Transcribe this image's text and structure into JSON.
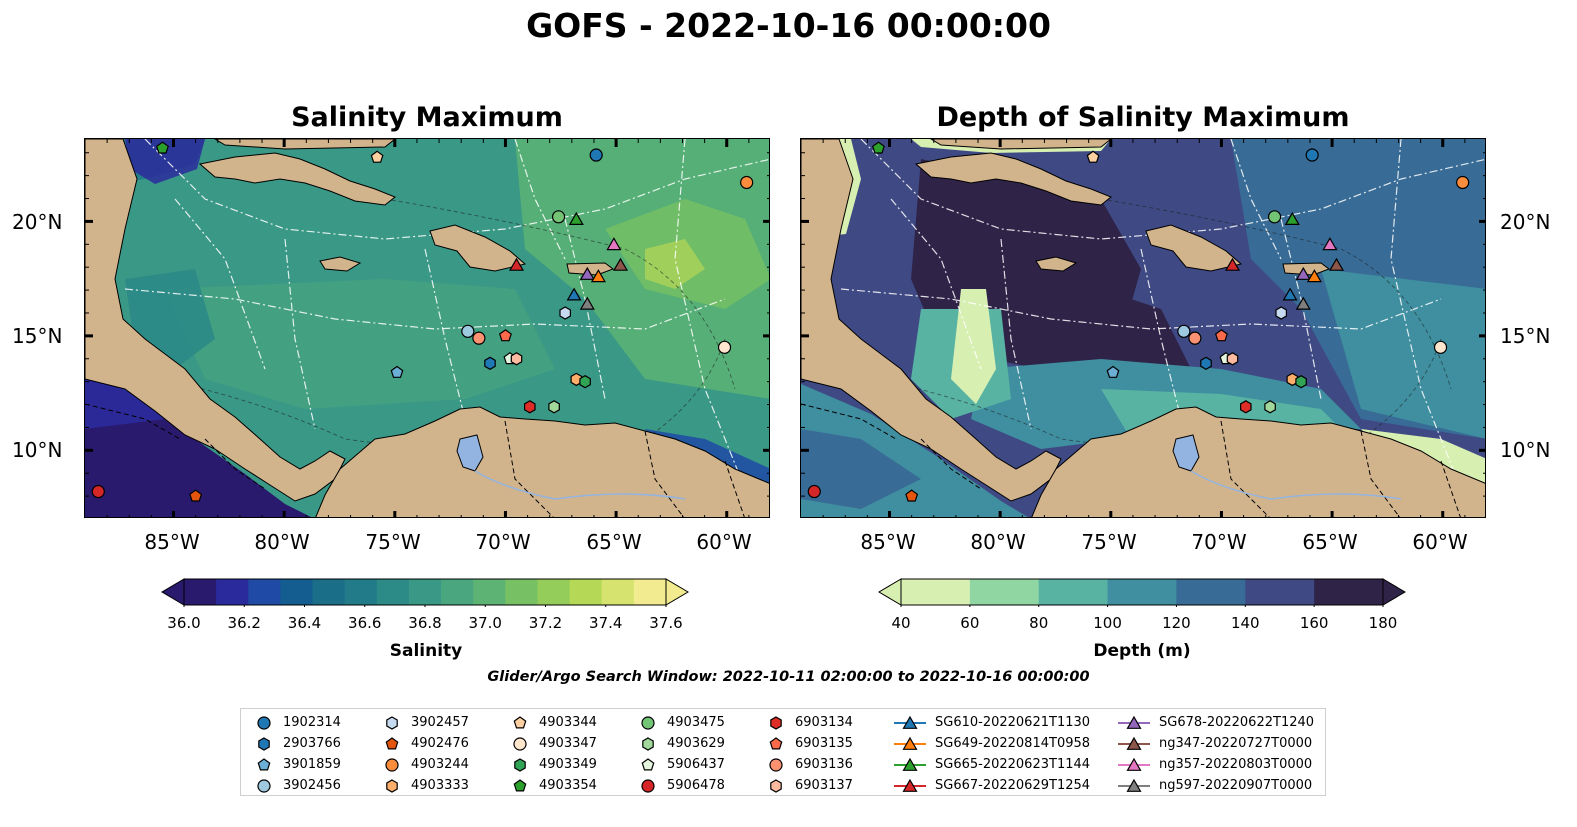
{
  "title": "GOFS - 2022-10-16 00:00:00",
  "panels": {
    "left": {
      "title": "Salinity Maximum",
      "colorbar": {
        "label": "Salinity",
        "ticks": [
          "36.0",
          "36.2",
          "36.4",
          "36.6",
          "36.8",
          "37.0",
          "37.2",
          "37.4",
          "37.6"
        ],
        "min": 36.0,
        "max": 37.6,
        "colors": [
          "#2a1a6e",
          "#2b2a9c",
          "#1f4aa5",
          "#135d91",
          "#1a6e88",
          "#227b88",
          "#2c8a87",
          "#3a9886",
          "#4aa67f",
          "#5cb373",
          "#77c164",
          "#94cd5a",
          "#b5d957",
          "#d6e36f",
          "#f2eb8f"
        ],
        "extend": "both"
      }
    },
    "right": {
      "title": "Depth of Salinity Maximum",
      "colorbar": {
        "label": "Depth (m)",
        "ticks": [
          "40",
          "60",
          "80",
          "100",
          "120",
          "140",
          "160",
          "180"
        ],
        "min": 40,
        "max": 180,
        "colors": [
          "#d8efb2",
          "#8fd6a3",
          "#58b3a3",
          "#3f8fa0",
          "#386c96",
          "#3f4a84",
          "#2f2348"
        ],
        "extend": "both"
      }
    },
    "lat_ticks": [
      "20°N",
      "15°N",
      "10°N"
    ],
    "lon_ticks": [
      "85°W",
      "80°W",
      "75°W",
      "70°W",
      "65°W",
      "60°W"
    ]
  },
  "search_window": "Glider/Argo Search Window: 2022-10-11 02:00:00 to 2022-10-16 00:00:00",
  "legend": {
    "columns": [
      [
        {
          "label": "1902314",
          "marker": "circle",
          "color": "#1f77b4"
        },
        {
          "label": "2903766",
          "marker": "hexagon",
          "color": "#1f77b4"
        },
        {
          "label": "3901859",
          "marker": "pentagon",
          "color": "#6baed6"
        },
        {
          "label": "3902456",
          "marker": "circle",
          "color": "#9ecae1"
        }
      ],
      [
        {
          "label": "3902457",
          "marker": "hexagon",
          "color": "#c6dbef"
        },
        {
          "label": "4902476",
          "marker": "pentagon",
          "color": "#e6550d"
        },
        {
          "label": "4903244",
          "marker": "circle",
          "color": "#fd8d3c"
        },
        {
          "label": "4903333",
          "marker": "hexagon",
          "color": "#fdae6b"
        }
      ],
      [
        {
          "label": "4903344",
          "marker": "pentagon",
          "color": "#fdd0a2"
        },
        {
          "label": "4903347",
          "marker": "circle",
          "color": "#fee6ce"
        },
        {
          "label": "4903349",
          "marker": "hexagon",
          "color": "#31a354"
        },
        {
          "label": "4903354",
          "marker": "pentagon",
          "color": "#2ca02c"
        }
      ],
      [
        {
          "label": "4903475",
          "marker": "circle",
          "color": "#74c476"
        },
        {
          "label": "4903629",
          "marker": "hexagon",
          "color": "#a1d99b"
        },
        {
          "label": "5906437",
          "marker": "pentagon",
          "color": "#e5f5e0"
        },
        {
          "label": "5906478",
          "marker": "circle",
          "color": "#d62728"
        }
      ],
      [
        {
          "label": "6903134",
          "marker": "hexagon",
          "color": "#de2d26"
        },
        {
          "label": "6903135",
          "marker": "pentagon",
          "color": "#fb6a4a"
        },
        {
          "label": "6903136",
          "marker": "circle",
          "color": "#fc9272"
        },
        {
          "label": "6903137",
          "marker": "hexagon",
          "color": "#fcbba1"
        }
      ],
      [
        {
          "label": "SG610-20220621T1130",
          "marker": "triangle-line",
          "color": "#1f77b4"
        },
        {
          "label": "SG649-20220814T0958",
          "marker": "triangle-line",
          "color": "#ff7f0e"
        },
        {
          "label": "SG665-20220623T1144",
          "marker": "triangle-line",
          "color": "#2ca02c"
        },
        {
          "label": "SG667-20220629T1254",
          "marker": "triangle-line",
          "color": "#d62728"
        }
      ],
      [
        {
          "label": "SG678-20220622T1240",
          "marker": "triangle-line",
          "color": "#9467bd"
        },
        {
          "label": "ng347-20220727T0000",
          "marker": "triangle-line",
          "color": "#8c564b"
        },
        {
          "label": "ng357-20220803T0000",
          "marker": "triangle-line",
          "color": "#e377c2"
        },
        {
          "label": "ng597-20220907T0000",
          "marker": "triangle-line",
          "color": "#7f7f7f"
        }
      ]
    ]
  },
  "map_markers": [
    {
      "id": "1902314",
      "marker": "circle",
      "color": "#1f77b4",
      "lon": -65.9,
      "lat": 22.9
    },
    {
      "id": "4903244",
      "marker": "circle",
      "color": "#fd8d3c",
      "lon": -59.1,
      "lat": 21.7
    },
    {
      "id": "4903354",
      "marker": "pentagon",
      "color": "#2ca02c",
      "lon": -85.5,
      "lat": 23.2
    },
    {
      "id": "4903344",
      "marker": "pentagon",
      "color": "#fdd0a2",
      "lon": -75.8,
      "lat": 22.8
    },
    {
      "id": "4903475",
      "marker": "circle",
      "color": "#74c476",
      "lon": -67.6,
      "lat": 20.2
    },
    {
      "id": "SG665-20220623T1144",
      "marker": "triangle",
      "color": "#2ca02c",
      "lon": -66.8,
      "lat": 20.1
    },
    {
      "id": "ng357-20220803T0000",
      "marker": "triangle",
      "color": "#e377c2",
      "lon": -65.1,
      "lat": 19.0
    },
    {
      "id": "SG667-20220629T1254",
      "marker": "triangle",
      "color": "#d62728",
      "lon": -69.5,
      "lat": 18.1
    },
    {
      "id": "ng347-20220727T0000",
      "marker": "triangle",
      "color": "#8c564b",
      "lon": -64.8,
      "lat": 18.1
    },
    {
      "id": "SG678-20220622T1240",
      "marker": "triangle",
      "color": "#9467bd",
      "lon": -66.3,
      "lat": 17.7
    },
    {
      "id": "SG649-20220814T0958",
      "marker": "triangle",
      "color": "#ff7f0e",
      "lon": -65.8,
      "lat": 17.6
    },
    {
      "id": "SG610-20220621T1130",
      "marker": "triangle",
      "color": "#1f77b4",
      "lon": -66.9,
      "lat": 16.8
    },
    {
      "id": "ng597-20220907T0000",
      "marker": "triangle",
      "color": "#7f7f7f",
      "lon": -66.3,
      "lat": 16.4
    },
    {
      "id": "3902457",
      "marker": "hexagon",
      "color": "#c6dbef",
      "lon": -67.3,
      "lat": 16.0
    },
    {
      "id": "3902456",
      "marker": "circle",
      "color": "#9ecae1",
      "lon": -71.7,
      "lat": 15.2
    },
    {
      "id": "6903136",
      "marker": "circle",
      "color": "#fc9272",
      "lon": -71.2,
      "lat": 14.9
    },
    {
      "id": "6903135",
      "marker": "pentagon",
      "color": "#fb6a4a",
      "lon": -70.0,
      "lat": 15.0
    },
    {
      "id": "2903766",
      "marker": "hexagon",
      "color": "#1f77b4",
      "lon": -70.7,
      "lat": 13.8
    },
    {
      "id": "5906437",
      "marker": "pentagon",
      "color": "#e5f5e0",
      "lon": -69.8,
      "lat": 14.0
    },
    {
      "id": "6903137",
      "marker": "hexagon",
      "color": "#fcbba1",
      "lon": -69.5,
      "lat": 14.0
    },
    {
      "id": "4903347",
      "marker": "circle",
      "color": "#fee6ce",
      "lon": -60.1,
      "lat": 14.5
    },
    {
      "id": "3901859",
      "marker": "pentagon",
      "color": "#6baed6",
      "lon": -74.9,
      "lat": 13.4
    },
    {
      "id": "4903333",
      "marker": "hexagon",
      "color": "#fdae6b",
      "lon": -66.8,
      "lat": 13.1
    },
    {
      "id": "4903349",
      "marker": "hexagon",
      "color": "#31a354",
      "lon": -66.4,
      "lat": 13.0
    },
    {
      "id": "6903134",
      "marker": "hexagon",
      "color": "#de2d26",
      "lon": -68.9,
      "lat": 11.9
    },
    {
      "id": "4903629",
      "marker": "hexagon",
      "color": "#a1d99b",
      "lon": -67.8,
      "lat": 11.9
    },
    {
      "id": "5906478",
      "marker": "circle",
      "color": "#d62728",
      "lon": -88.4,
      "lat": 8.2
    },
    {
      "id": "4902476",
      "marker": "pentagon",
      "color": "#e6550d",
      "lon": -84.0,
      "lat": 8.0
    }
  ]
}
